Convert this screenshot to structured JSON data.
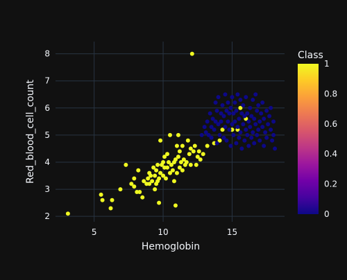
{
  "chart_data": {
    "type": "scatter",
    "xlabel": "Hemoglobin",
    "ylabel": "Red_blood_cell_count",
    "xlim": [
      2.2,
      18.8
    ],
    "ylim": [
      1.8,
      8.45
    ],
    "xticks": [
      5,
      10,
      15
    ],
    "yticks": [
      2,
      3,
      4,
      5,
      6,
      7,
      8
    ],
    "grid": true,
    "background": "#111111",
    "grid_color": "#283442",
    "colorbar": {
      "title": "Class",
      "range": [
        0,
        1
      ],
      "ticks": [
        0,
        0.2,
        0.4,
        0.6,
        0.8,
        1
      ],
      "colors": [
        "#0d0887",
        "#46039f",
        "#7201a8",
        "#9c179e",
        "#bd3786",
        "#d8576b",
        "#ed7953",
        "#fb9f3a",
        "#fdca26",
        "#f0f921"
      ]
    },
    "series": [
      {
        "class": 1,
        "color": "#f0f921",
        "points": [
          [
            3.1,
            2.1
          ],
          [
            5.5,
            2.8
          ],
          [
            5.6,
            2.6
          ],
          [
            6.2,
            2.3
          ],
          [
            6.3,
            2.6
          ],
          [
            6.9,
            3.0
          ],
          [
            7.3,
            3.9
          ],
          [
            7.7,
            3.2
          ],
          [
            7.9,
            3.4
          ],
          [
            7.9,
            3.1
          ],
          [
            8.1,
            2.9
          ],
          [
            8.2,
            3.7
          ],
          [
            8.3,
            2.9
          ],
          [
            8.5,
            2.7
          ],
          [
            8.6,
            3.3
          ],
          [
            8.8,
            3.2
          ],
          [
            8.9,
            3.4
          ],
          [
            9.0,
            3.6
          ],
          [
            9.0,
            3.2
          ],
          [
            9.1,
            3.5
          ],
          [
            9.2,
            3.3
          ],
          [
            9.3,
            3.8
          ],
          [
            9.4,
            3.0
          ],
          [
            9.4,
            3.5
          ],
          [
            9.5,
            3.2
          ],
          [
            9.5,
            3.7
          ],
          [
            9.6,
            3.3
          ],
          [
            9.6,
            3.9
          ],
          [
            9.7,
            2.5
          ],
          [
            9.7,
            3.4
          ],
          [
            9.8,
            4.8
          ],
          [
            9.8,
            3.6
          ],
          [
            9.9,
            3.9
          ],
          [
            10.0,
            4.0
          ],
          [
            10.0,
            3.5
          ],
          [
            10.1,
            4.2
          ],
          [
            10.1,
            3.8
          ],
          [
            10.2,
            3.4
          ],
          [
            10.3,
            4.3
          ],
          [
            10.3,
            3.8
          ],
          [
            10.4,
            4.0
          ],
          [
            10.5,
            5.0
          ],
          [
            10.5,
            3.6
          ],
          [
            10.6,
            3.9
          ],
          [
            10.7,
            3.7
          ],
          [
            10.8,
            4.0
          ],
          [
            10.8,
            3.3
          ],
          [
            10.9,
            2.4
          ],
          [
            10.9,
            4.1
          ],
          [
            11.0,
            4.6
          ],
          [
            11.0,
            3.6
          ],
          [
            11.1,
            5.0
          ],
          [
            11.1,
            4.2
          ],
          [
            11.2,
            4.4
          ],
          [
            11.2,
            3.8
          ],
          [
            11.3,
            4.0
          ],
          [
            11.4,
            4.6
          ],
          [
            11.4,
            3.7
          ],
          [
            11.5,
            4.1
          ],
          [
            11.6,
            3.9
          ],
          [
            11.7,
            4.0
          ],
          [
            11.8,
            4.8
          ],
          [
            11.9,
            4.3
          ],
          [
            12.0,
            4.5
          ],
          [
            12.0,
            3.9
          ],
          [
            12.1,
            8.0
          ],
          [
            12.2,
            4.4
          ],
          [
            12.3,
            4.6
          ],
          [
            12.4,
            3.9
          ],
          [
            12.5,
            4.2
          ],
          [
            12.6,
            4.4
          ],
          [
            12.7,
            4.1
          ],
          [
            12.9,
            4.3
          ],
          [
            13.2,
            4.6
          ],
          [
            13.7,
            4.7
          ],
          [
            14.1,
            4.8
          ],
          [
            14.3,
            5.2
          ],
          [
            15.0,
            5.2
          ],
          [
            15.4,
            5.2
          ],
          [
            15.6,
            6.0
          ],
          [
            16.0,
            5.6
          ]
        ]
      },
      {
        "class": 0,
        "color": "#0d0887",
        "points": [
          [
            12.8,
            5.0
          ],
          [
            13.0,
            5.3
          ],
          [
            13.1,
            5.1
          ],
          [
            13.2,
            5.5
          ],
          [
            13.3,
            5.0
          ],
          [
            13.4,
            5.8
          ],
          [
            13.5,
            5.3
          ],
          [
            13.5,
            4.9
          ],
          [
            13.6,
            5.6
          ],
          [
            13.7,
            5.2
          ],
          [
            13.8,
            6.2
          ],
          [
            13.8,
            5.5
          ],
          [
            13.9,
            4.7
          ],
          [
            13.9,
            5.9
          ],
          [
            14.0,
            6.4
          ],
          [
            14.0,
            5.4
          ],
          [
            14.1,
            5.0
          ],
          [
            14.2,
            5.8
          ],
          [
            14.2,
            5.5
          ],
          [
            14.3,
            6.1
          ],
          [
            14.4,
            4.9
          ],
          [
            14.4,
            5.7
          ],
          [
            14.5,
            5.3
          ],
          [
            14.5,
            6.5
          ],
          [
            14.6,
            5.9
          ],
          [
            14.6,
            4.8
          ],
          [
            14.7,
            5.5
          ],
          [
            14.7,
            6.2
          ],
          [
            14.8,
            5.2
          ],
          [
            14.8,
            5.8
          ],
          [
            14.9,
            4.6
          ],
          [
            14.9,
            6.0
          ],
          [
            15.0,
            5.4
          ],
          [
            15.0,
            6.4
          ],
          [
            15.1,
            5.0
          ],
          [
            15.1,
            5.8
          ],
          [
            15.2,
            5.5
          ],
          [
            15.2,
            6.2
          ],
          [
            15.3,
            4.7
          ],
          [
            15.3,
            5.9
          ],
          [
            15.4,
            5.3
          ],
          [
            15.4,
            6.5
          ],
          [
            15.5,
            5.6
          ],
          [
            15.5,
            4.9
          ],
          [
            15.6,
            6.3
          ],
          [
            15.6,
            5.1
          ],
          [
            15.7,
            5.8
          ],
          [
            15.7,
            4.5
          ],
          [
            15.8,
            5.4
          ],
          [
            15.8,
            6.1
          ],
          [
            15.9,
            4.8
          ],
          [
            15.9,
            5.7
          ],
          [
            16.0,
            5.2
          ],
          [
            16.0,
            6.4
          ],
          [
            16.1,
            5.0
          ],
          [
            16.1,
            5.8
          ],
          [
            16.2,
            5.5
          ],
          [
            16.2,
            4.6
          ],
          [
            16.3,
            6.0
          ],
          [
            16.3,
            5.3
          ],
          [
            16.4,
            4.9
          ],
          [
            16.4,
            5.7
          ],
          [
            16.5,
            6.3
          ],
          [
            16.5,
            5.1
          ],
          [
            16.6,
            5.6
          ],
          [
            16.6,
            4.7
          ],
          [
            16.7,
            6.5
          ],
          [
            16.7,
            5.4
          ],
          [
            16.8,
            5.0
          ],
          [
            16.8,
            5.9
          ],
          [
            16.9,
            5.2
          ],
          [
            16.9,
            6.1
          ],
          [
            17.0,
            5.5
          ],
          [
            17.0,
            4.8
          ],
          [
            17.1,
            5.8
          ],
          [
            17.2,
            5.3
          ],
          [
            17.2,
            6.2
          ],
          [
            17.3,
            4.6
          ],
          [
            17.3,
            5.6
          ],
          [
            17.4,
            5.1
          ],
          [
            17.5,
            5.9
          ],
          [
            17.5,
            4.9
          ],
          [
            17.6,
            5.4
          ],
          [
            17.7,
            5.7
          ],
          [
            17.8,
            6.0
          ],
          [
            17.8,
            5.2
          ],
          [
            17.9,
            4.8
          ],
          [
            18.0,
            5.5
          ],
          [
            18.0,
            5.0
          ],
          [
            18.1,
            4.5
          ]
        ]
      }
    ]
  }
}
